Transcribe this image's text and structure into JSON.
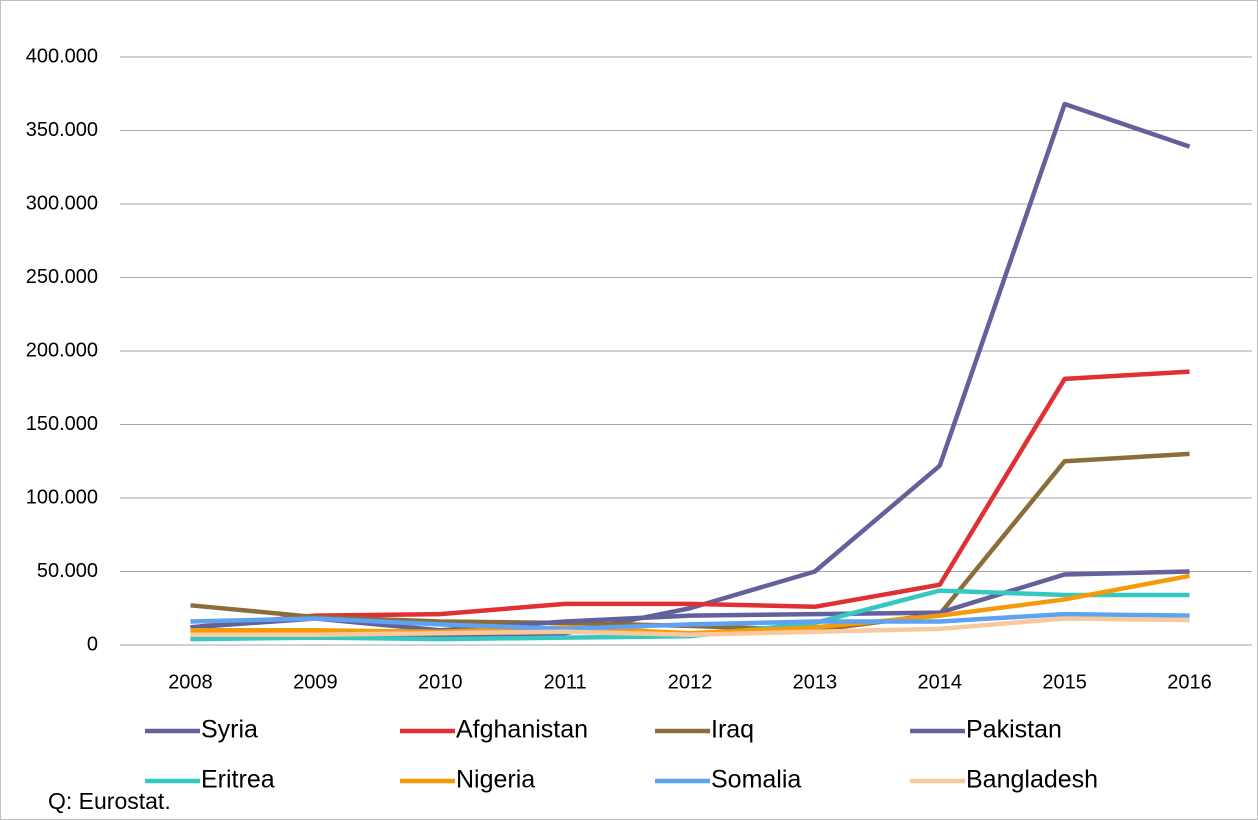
{
  "chart_data": {
    "type": "line",
    "categories": [
      "2008",
      "2009",
      "2010",
      "2011",
      "2012",
      "2013",
      "2014",
      "2015",
      "2016"
    ],
    "series": [
      {
        "name": "Syria",
        "color": "#63619b",
        "values": [
          5000,
          5000,
          5000,
          8000,
          25000,
          50000,
          122000,
          368000,
          339000
        ]
      },
      {
        "name": "Afghanistan",
        "color": "#e03034",
        "values": [
          12000,
          20000,
          21000,
          28000,
          28000,
          26000,
          41000,
          181000,
          186000
        ]
      },
      {
        "name": "Iraq",
        "color": "#8b6d3a",
        "values": [
          27000,
          19000,
          16000,
          15000,
          13000,
          10000,
          21000,
          125000,
          130000
        ]
      },
      {
        "name": "Pakistan",
        "color": "#63619b",
        "values": [
          12000,
          18000,
          10000,
          16000,
          20000,
          21000,
          22000,
          48000,
          50000
        ]
      },
      {
        "name": "Eritrea",
        "color": "#35c8c0",
        "values": [
          4000,
          5000,
          4000,
          5000,
          6000,
          15000,
          37000,
          34000,
          34000
        ]
      },
      {
        "name": "Nigeria",
        "color": "#f59b0b",
        "values": [
          10000,
          10000,
          9000,
          12000,
          8000,
          12000,
          20000,
          31000,
          47000
        ]
      },
      {
        "name": "Somalia",
        "color": "#5ea3f2",
        "values": [
          16000,
          18000,
          14000,
          11000,
          14000,
          16000,
          16000,
          21000,
          20000
        ]
      },
      {
        "name": "Bangladesh",
        "color": "#f8c99c",
        "values": [
          7000,
          7000,
          8000,
          9000,
          7000,
          9000,
          11000,
          18000,
          17000
        ]
      }
    ],
    "ylim": [
      0,
      400000
    ],
    "yticks": [
      0,
      {
        "value": 50000,
        "label": "50.000"
      },
      {
        "value": 100000,
        "label": "100.000"
      },
      {
        "value": 150000,
        "label": "150.000"
      },
      {
        "value": 200000,
        "label": "200.000"
      },
      {
        "value": 250000,
        "label": "250.000"
      },
      {
        "value": 300000,
        "label": "300.000"
      },
      {
        "value": 350000,
        "label": "350.000"
      },
      {
        "value": 400000,
        "label": "400.000"
      }
    ],
    "grid": true,
    "legend": "bottom",
    "source": "Q: Eurostat."
  }
}
